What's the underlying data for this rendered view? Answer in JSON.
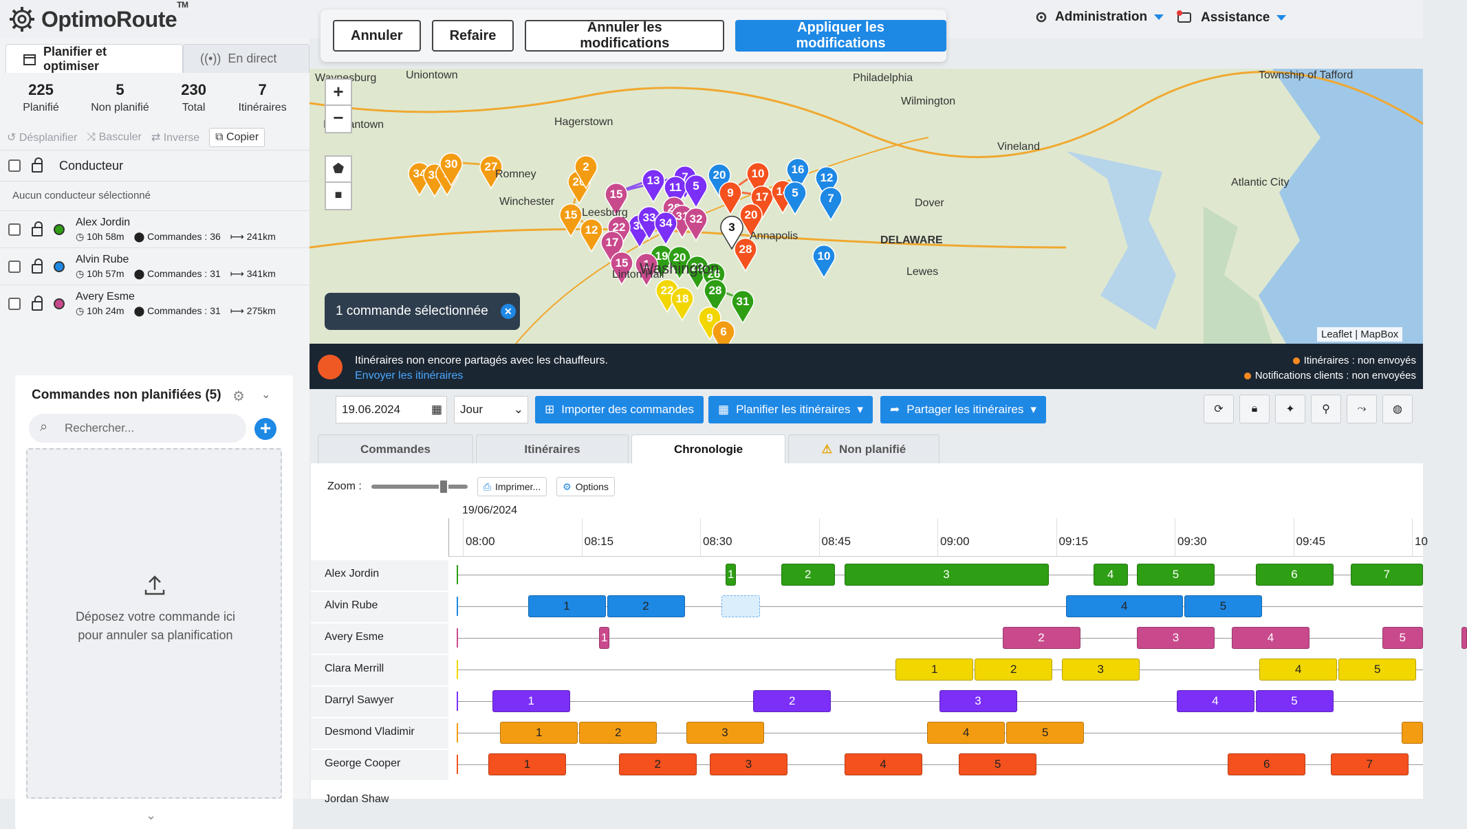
{
  "brand": {
    "name": "OptimoRoute",
    "tm": "TM"
  },
  "header": {
    "admin": "Administration",
    "help": "Assistance"
  },
  "editbar": {
    "cancel": "Annuler",
    "redo": "Refaire",
    "discard": "Annuler les modifications",
    "apply": "Appliquer les modifications"
  },
  "left_tabs": {
    "plan": "Planifier et optimiser",
    "live": "En direct"
  },
  "stats": [
    {
      "num": "225",
      "label": "Planifié"
    },
    {
      "num": "5",
      "label": "Non planifié"
    },
    {
      "num": "230",
      "label": "Total"
    },
    {
      "num": "7",
      "label": "Itinéraires"
    }
  ],
  "actions": {
    "unplan": "Désplanifier",
    "switch": "Basculer",
    "reverse": "Inverse",
    "copy": "Copier"
  },
  "driver_header": "Conducteur",
  "no_driver": "Aucun conducteur sélectionné",
  "drivers": [
    {
      "name": "Alex Jordin",
      "time": "10h 58m",
      "orders": "Commandes : 36",
      "dist": "241km",
      "color": "#2e9e14"
    },
    {
      "name": "Alvin Rube",
      "time": "10h 57m",
      "orders": "Commandes : 31",
      "dist": "341km",
      "color": "#1e88e5"
    },
    {
      "name": "Avery Esme",
      "time": "10h 24m",
      "orders": "Commandes : 31",
      "dist": "275km",
      "color": "#c94a8c"
    }
  ],
  "unplanned": {
    "title": "Commandes non planifiées (5)",
    "search_placeholder": "Rechercher...",
    "drop_line1": "Déposez votre commande ici",
    "drop_line2": "pour annuler sa planification"
  },
  "map": {
    "selected": "1 commande sélectionnée",
    "attribution": "Leaflet | MapBox",
    "places": [
      {
        "name": "Waynesburg"
      },
      {
        "name": "Uniontown"
      },
      {
        "name": "Philadelphia"
      },
      {
        "name": "Wilmington"
      },
      {
        "name": "Township of Tafford"
      },
      {
        "name": "Vineland"
      },
      {
        "name": "Atlantic City"
      },
      {
        "name": "Dover"
      },
      {
        "name": "DELAWARE"
      },
      {
        "name": "Romney"
      },
      {
        "name": "Winchester"
      },
      {
        "name": "Leesburg"
      },
      {
        "name": "Washington"
      },
      {
        "name": "Linton Hall"
      },
      {
        "name": "Lewes"
      },
      {
        "name": "Hagerstown"
      },
      {
        "name": "Morgantown"
      },
      {
        "name": "Annapolis"
      }
    ],
    "markers": [
      {
        "n": "34",
        "c": "#f39c12"
      },
      {
        "n": "33",
        "c": "#f39c12"
      },
      {
        "n": "1",
        "c": "#f39c12"
      },
      {
        "n": "30",
        "c": "#f39c12"
      },
      {
        "n": "27",
        "c": "#f39c12"
      },
      {
        "n": "20",
        "c": "#f39c12"
      },
      {
        "n": "2",
        "c": "#f39c12"
      },
      {
        "n": "15",
        "c": "#f39c12"
      },
      {
        "n": "12",
        "c": "#f39c12"
      },
      {
        "n": "13",
        "c": "#7b2ff7"
      },
      {
        "n": "15",
        "c": "#c94a8c"
      },
      {
        "n": "7",
        "c": "#7b2ff7"
      },
      {
        "n": "11",
        "c": "#7b2ff7"
      },
      {
        "n": "5",
        "c": "#7b2ff7"
      },
      {
        "n": "20",
        "c": "#1e88e5"
      },
      {
        "n": "16",
        "c": "#1e88e5"
      },
      {
        "n": "10",
        "c": "#f4511e"
      },
      {
        "n": "9",
        "c": "#f4511e"
      },
      {
        "n": "17",
        "c": "#f4511e"
      },
      {
        "n": "14",
        "c": "#f4511e"
      },
      {
        "n": "5",
        "c": "#1e88e5"
      },
      {
        "n": "12",
        "c": "#1e88e5"
      },
      {
        "n": "7",
        "c": "#1e88e5"
      },
      {
        "n": "28",
        "c": "#c94a8c"
      },
      {
        "n": "31",
        "c": "#c94a8c"
      },
      {
        "n": "32",
        "c": "#c94a8c"
      },
      {
        "n": "30",
        "c": "#7b2ff7"
      },
      {
        "n": "33",
        "c": "#7b2ff7"
      },
      {
        "n": "34",
        "c": "#7b2ff7"
      },
      {
        "n": "22",
        "c": "#c94a8c"
      },
      {
        "n": "17",
        "c": "#c94a8c"
      },
      {
        "n": "15",
        "c": "#c94a8c"
      },
      {
        "n": "20",
        "c": "#f4511e"
      },
      {
        "n": "28",
        "c": "#f4511e"
      },
      {
        "n": "3",
        "c": "#ffffff"
      },
      {
        "n": "10",
        "c": "#1e88e5"
      },
      {
        "n": "19",
        "c": "#2e9e14"
      },
      {
        "n": "20",
        "c": "#2e9e14"
      },
      {
        "n": "22",
        "c": "#2e9e14"
      },
      {
        "n": "26",
        "c": "#2e9e14"
      },
      {
        "n": "28",
        "c": "#2e9e14"
      },
      {
        "n": "31",
        "c": "#2e9e14"
      },
      {
        "n": "22",
        "c": "#f2d600"
      },
      {
        "n": "18",
        "c": "#f2d600"
      },
      {
        "n": "9",
        "c": "#f2d600"
      },
      {
        "n": "6",
        "c": "#f39c12"
      },
      {
        "n": "1",
        "c": "#c94a8c"
      }
    ]
  },
  "notice": {
    "line1": "Itinéraires non encore partagés avec les chauffeurs.",
    "link": "Envoyer les itinéraires",
    "status1": "Itinéraires : non envoyés",
    "status2": "Notifications clients : non envoyées"
  },
  "toolbar": {
    "date": "19.06.2024",
    "period": "Jour",
    "import": "Importer des commandes",
    "plan": "Planifier les itinéraires",
    "share": "Partager les itinéraires"
  },
  "main_tabs": {
    "orders": "Commandes",
    "routes": "Itinéraires",
    "timeline": "Chronologie",
    "unplanned": "Non planifié"
  },
  "timeline": {
    "zoom_label": "Zoom :",
    "print": "Imprimer...",
    "options": "Options",
    "date": "19/06/2024",
    "ticks": [
      "08:00",
      "08:15",
      "08:30",
      "08:45",
      "09:00",
      "09:15",
      "09:30",
      "09:45",
      "10"
    ],
    "rows": [
      {
        "name": "Alex Jordin",
        "color": "#2e9e14",
        "segs": [
          [
            "1",
            34.0,
            35.5
          ],
          [
            "2",
            41.0,
            48.0
          ],
          [
            "3",
            49.0,
            75.0
          ],
          [
            "4",
            80.5,
            85.0
          ],
          [
            "5",
            86.0,
            96.0
          ],
          [
            "6",
            101.0,
            111.0
          ],
          [
            "7",
            113.0,
            126.0
          ]
        ]
      },
      {
        "name": "Alvin Rube",
        "color": "#1e88e5",
        "segs": [
          [
            "1",
            9.0,
            19.0
          ],
          [
            "2",
            19.0,
            29.0
          ],
          [
            "",
            33.5,
            38.5
          ],
          [
            "4",
            77.0,
            92.0
          ],
          [
            "5",
            92.0,
            102.0
          ]
        ]
      },
      {
        "name": "Avery Esme",
        "color": "#c94a8c",
        "segs": [
          [
            "1",
            18.0,
            19.5
          ],
          [
            "2",
            69.0,
            79.0
          ],
          [
            "3",
            86.0,
            96.0
          ],
          [
            "4",
            98.0,
            108.0
          ],
          [
            "5",
            117.0,
            127.0
          ],
          [
            "",
            127.0,
            131.0
          ]
        ]
      },
      {
        "name": "Clara Merrill",
        "color": "#f2d600",
        "segs": [
          [
            "1",
            55.5,
            65.5
          ],
          [
            "2",
            65.5,
            75.5
          ],
          [
            "3",
            76.5,
            86.5
          ],
          [
            "4",
            101.5,
            111.5
          ],
          [
            "5",
            111.5,
            121.5
          ]
        ]
      },
      {
        "name": "Darryl Sawyer",
        "color": "#7b2ff7",
        "segs": [
          [
            "1",
            4.5,
            14.5
          ],
          [
            "2",
            37.5,
            47.5
          ],
          [
            "3",
            61.0,
            71.0
          ],
          [
            "4",
            91.0,
            101.0
          ],
          [
            "5",
            101.0,
            111.0
          ]
        ]
      },
      {
        "name": "Desmond Vladimir",
        "color": "#f39c12",
        "segs": [
          [
            "1",
            5.5,
            15.5
          ],
          [
            "2",
            15.5,
            25.5
          ],
          [
            "3",
            29.0,
            39.0
          ],
          [
            "4",
            59.5,
            69.5
          ],
          [
            "5",
            69.5,
            79.5
          ],
          [
            "",
            119.5,
            124.0
          ]
        ]
      },
      {
        "name": "George Cooper",
        "color": "#f4511e",
        "segs": [
          [
            "1",
            4.0,
            14.0
          ],
          [
            "2",
            20.5,
            30.5
          ],
          [
            "3",
            32.0,
            42.0
          ],
          [
            "4",
            49.0,
            59.0
          ],
          [
            "5",
            63.5,
            73.5
          ],
          [
            "6",
            97.5,
            107.5
          ],
          [
            "7",
            110.5,
            120.5
          ]
        ]
      }
    ],
    "next_row": "Jordan Shaw"
  }
}
